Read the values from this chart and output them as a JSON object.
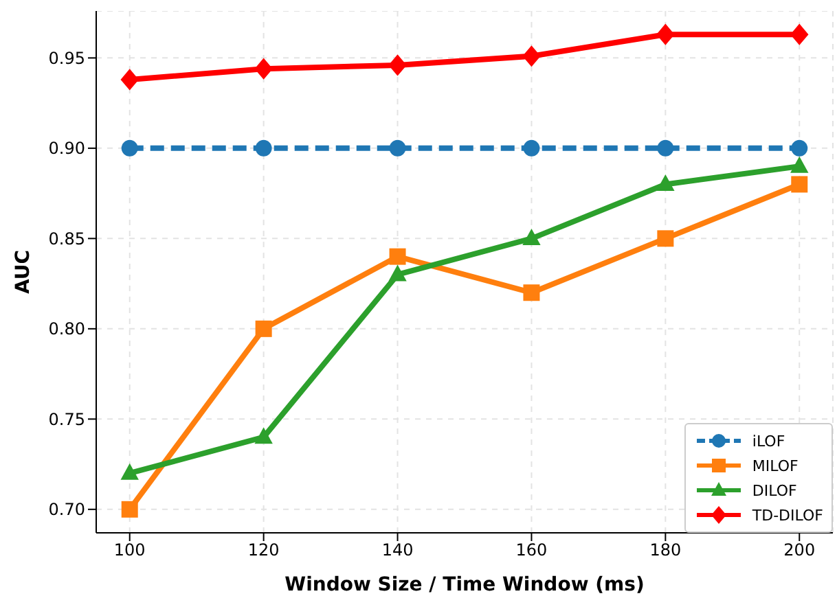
{
  "chart_data": {
    "type": "line",
    "xlabel": "Window Size / Time Window (ms)",
    "ylabel": "AUC",
    "x": [
      100,
      120,
      140,
      160,
      180,
      200
    ],
    "series": [
      {
        "name": "iLOF",
        "color": "#1f77b4",
        "values": [
          0.9,
          0.9,
          0.9,
          0.9,
          0.9,
          0.9
        ],
        "marker": "circle",
        "line_style": "dashed"
      },
      {
        "name": "MILOF",
        "color": "#ff7f0e",
        "values": [
          0.7,
          0.8,
          0.84,
          0.82,
          0.85,
          0.88
        ],
        "marker": "square",
        "line_style": "solid"
      },
      {
        "name": "DILOF",
        "color": "#2ca02c",
        "values": [
          0.72,
          0.74,
          0.83,
          0.85,
          0.88,
          0.89
        ],
        "marker": "triangle",
        "line_style": "solid"
      },
      {
        "name": "TD-DILOF",
        "color": "#ff0000",
        "values": [
          0.938,
          0.944,
          0.946,
          0.951,
          0.963,
          0.963
        ],
        "marker": "diamond",
        "line_style": "solid"
      }
    ],
    "xlim": [
      95,
      205
    ],
    "xticks": [
      100,
      120,
      140,
      160,
      180,
      200
    ],
    "ylim": [
      0.687,
      0.976
    ],
    "yticks": [
      {
        "value": 0.7,
        "label": "0.70"
      },
      {
        "value": 0.75,
        "label": "0.75"
      },
      {
        "value": 0.8,
        "label": "0.80"
      },
      {
        "value": 0.85,
        "label": "0.85"
      },
      {
        "value": 0.9,
        "label": "0.90"
      },
      {
        "value": 0.95,
        "label": "0.95"
      }
    ],
    "grid": true,
    "legend": "bottom right"
  }
}
